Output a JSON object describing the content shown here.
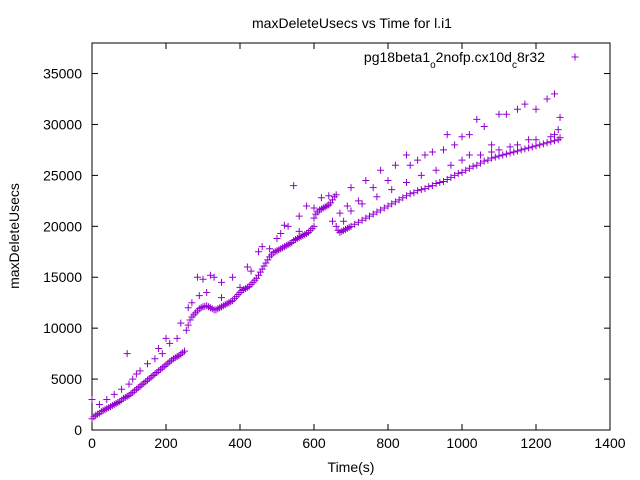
{
  "chart_data": {
    "type": "scatter",
    "title": "maxDeleteUsecs vs Time for l.i1",
    "xlabel": "Time(s)",
    "ylabel": "maxDeleteUsecs",
    "xlim": [
      0,
      1400
    ],
    "ylim": [
      0,
      38000
    ],
    "xticks": [
      0,
      200,
      400,
      600,
      800,
      1000,
      1200,
      1400
    ],
    "yticks": [
      0,
      5000,
      10000,
      15000,
      20000,
      25000,
      30000,
      35000
    ],
    "marker": "+",
    "grid": false,
    "legend_position": "top-right",
    "legend_label_parts": [
      {
        "text": "pg18beta1",
        "sub": false
      },
      {
        "text": "o",
        "sub": true
      },
      {
        "text": "2nofp.cx10d",
        "sub": false
      },
      {
        "text": "c",
        "sub": true
      },
      {
        "text": "8r32",
        "sub": false
      }
    ],
    "series": [
      {
        "color": "#9400D3",
        "points": [
          [
            0,
            1100
          ],
          [
            5,
            1300
          ],
          [
            10,
            1450
          ],
          [
            15,
            1550
          ],
          [
            20,
            1650
          ],
          [
            25,
            1800
          ],
          [
            30,
            1900
          ],
          [
            35,
            2000
          ],
          [
            40,
            2100
          ],
          [
            45,
            2200
          ],
          [
            50,
            2300
          ],
          [
            55,
            2400
          ],
          [
            60,
            2500
          ],
          [
            65,
            2600
          ],
          [
            70,
            2700
          ],
          [
            75,
            2800
          ],
          [
            80,
            2950
          ],
          [
            85,
            3100
          ],
          [
            90,
            3200
          ],
          [
            95,
            3300
          ],
          [
            100,
            3400
          ],
          [
            105,
            3550
          ],
          [
            110,
            3700
          ],
          [
            115,
            3850
          ],
          [
            120,
            4000
          ],
          [
            125,
            4150
          ],
          [
            130,
            4300
          ],
          [
            135,
            4450
          ],
          [
            140,
            4600
          ],
          [
            145,
            4750
          ],
          [
            150,
            4900
          ],
          [
            155,
            5050
          ],
          [
            160,
            5200
          ],
          [
            165,
            5350
          ],
          [
            170,
            5500
          ],
          [
            175,
            5650
          ],
          [
            180,
            5800
          ],
          [
            185,
            5950
          ],
          [
            190,
            6100
          ],
          [
            195,
            6250
          ],
          [
            200,
            6400
          ],
          [
            205,
            6550
          ],
          [
            210,
            6700
          ],
          [
            215,
            6850
          ],
          [
            220,
            7000
          ],
          [
            225,
            7100
          ],
          [
            230,
            7200
          ],
          [
            235,
            7300
          ],
          [
            240,
            7450
          ],
          [
            245,
            7600
          ],
          [
            250,
            7750
          ],
          [
            255,
            9800
          ],
          [
            260,
            10300
          ],
          [
            265,
            10800
          ],
          [
            270,
            11100
          ],
          [
            275,
            11300
          ],
          [
            280,
            11500
          ],
          [
            285,
            11700
          ],
          [
            290,
            11900
          ],
          [
            295,
            12000
          ],
          [
            300,
            12100
          ],
          [
            305,
            12150
          ],
          [
            310,
            12200
          ],
          [
            315,
            12100
          ],
          [
            320,
            12000
          ],
          [
            325,
            11900
          ],
          [
            330,
            11800
          ],
          [
            335,
            11800
          ],
          [
            340,
            11900
          ],
          [
            345,
            12000
          ],
          [
            350,
            12100
          ],
          [
            355,
            12200
          ],
          [
            360,
            12300
          ],
          [
            365,
            12400
          ],
          [
            370,
            12500
          ],
          [
            375,
            12600
          ],
          [
            380,
            12700
          ],
          [
            385,
            12900
          ],
          [
            390,
            13100
          ],
          [
            395,
            13300
          ],
          [
            400,
            13500
          ],
          [
            405,
            13700
          ],
          [
            410,
            13800
          ],
          [
            415,
            13900
          ],
          [
            420,
            14000
          ],
          [
            425,
            14100
          ],
          [
            430,
            14300
          ],
          [
            435,
            14500
          ],
          [
            440,
            14700
          ],
          [
            445,
            14900
          ],
          [
            450,
            15200
          ],
          [
            455,
            15500
          ],
          [
            460,
            15800
          ],
          [
            465,
            16100
          ],
          [
            470,
            16400
          ],
          [
            475,
            16700
          ],
          [
            480,
            17000
          ],
          [
            485,
            17200
          ],
          [
            490,
            17400
          ],
          [
            495,
            17500
          ],
          [
            500,
            17600
          ],
          [
            505,
            17700
          ],
          [
            510,
            17800
          ],
          [
            515,
            17900
          ],
          [
            520,
            18000
          ],
          [
            525,
            18100
          ],
          [
            530,
            18200
          ],
          [
            535,
            18300
          ],
          [
            540,
            18400
          ],
          [
            545,
            18600
          ],
          [
            550,
            18700
          ],
          [
            555,
            18800
          ],
          [
            560,
            18900
          ],
          [
            565,
            19000
          ],
          [
            570,
            19100
          ],
          [
            575,
            19200
          ],
          [
            580,
            19300
          ],
          [
            585,
            19400
          ],
          [
            590,
            19600
          ],
          [
            595,
            19800
          ],
          [
            600,
            20800
          ],
          [
            605,
            21200
          ],
          [
            610,
            21400
          ],
          [
            615,
            21600
          ],
          [
            620,
            21700
          ],
          [
            625,
            21800
          ],
          [
            630,
            21900
          ],
          [
            635,
            22000
          ],
          [
            640,
            22100
          ],
          [
            645,
            22300
          ],
          [
            650,
            22600
          ],
          [
            655,
            22900
          ],
          [
            660,
            23100
          ],
          [
            665,
            19600
          ],
          [
            670,
            19400
          ],
          [
            675,
            19500
          ],
          [
            680,
            19600
          ],
          [
            685,
            19700
          ],
          [
            690,
            19800
          ],
          [
            695,
            19900
          ],
          [
            700,
            20000
          ],
          [
            710,
            20200
          ],
          [
            720,
            20400
          ],
          [
            730,
            20600
          ],
          [
            740,
            20800
          ],
          [
            750,
            21000
          ],
          [
            760,
            21200
          ],
          [
            770,
            21400
          ],
          [
            780,
            21600
          ],
          [
            790,
            21800
          ],
          [
            800,
            22000
          ],
          [
            810,
            22200
          ],
          [
            820,
            22400
          ],
          [
            830,
            22600
          ],
          [
            840,
            22800
          ],
          [
            850,
            23000
          ],
          [
            860,
            23200
          ],
          [
            870,
            23300
          ],
          [
            880,
            23500
          ],
          [
            890,
            23600
          ],
          [
            900,
            23700
          ],
          [
            910,
            23900
          ],
          [
            920,
            24000
          ],
          [
            930,
            24200
          ],
          [
            940,
            24300
          ],
          [
            950,
            24400
          ],
          [
            960,
            24600
          ],
          [
            970,
            24800
          ],
          [
            980,
            25000
          ],
          [
            990,
            25200
          ],
          [
            1000,
            25300
          ],
          [
            1010,
            25500
          ],
          [
            1020,
            25700
          ],
          [
            1030,
            25900
          ],
          [
            1040,
            26000
          ],
          [
            1050,
            26200
          ],
          [
            1060,
            26400
          ],
          [
            1070,
            26500
          ],
          [
            1080,
            26700
          ],
          [
            1090,
            26800
          ],
          [
            1100,
            26900
          ],
          [
            1110,
            27000
          ],
          [
            1120,
            27100
          ],
          [
            1130,
            27200
          ],
          [
            1140,
            27300
          ],
          [
            1150,
            27400
          ],
          [
            1160,
            27500
          ],
          [
            1170,
            27600
          ],
          [
            1180,
            27700
          ],
          [
            1190,
            27800
          ],
          [
            1200,
            27900
          ],
          [
            1210,
            28000
          ],
          [
            1220,
            28100
          ],
          [
            1230,
            28200
          ],
          [
            1240,
            28300
          ],
          [
            1250,
            28400
          ],
          [
            1260,
            28500
          ],
          [
            1265,
            28700
          ],
          [
            0,
            3000
          ],
          [
            95,
            7500
          ],
          [
            180,
            8000
          ],
          [
            200,
            9000
          ],
          [
            240,
            10500
          ],
          [
            270,
            12500
          ],
          [
            300,
            14800
          ],
          [
            320,
            15200
          ],
          [
            330,
            15000
          ],
          [
            350,
            14500
          ],
          [
            380,
            15000
          ],
          [
            420,
            16000
          ],
          [
            450,
            17500
          ],
          [
            500,
            18800
          ],
          [
            530,
            20000
          ],
          [
            545,
            24000
          ],
          [
            560,
            19500
          ],
          [
            620,
            22800
          ],
          [
            640,
            23000
          ],
          [
            700,
            23800
          ],
          [
            740,
            24500
          ],
          [
            780,
            25500
          ],
          [
            820,
            26000
          ],
          [
            850,
            27000
          ],
          [
            900,
            27000
          ],
          [
            950,
            27500
          ],
          [
            980,
            28000
          ],
          [
            1000,
            28800
          ],
          [
            1020,
            29000
          ],
          [
            1060,
            29800
          ],
          [
            1080,
            28000
          ],
          [
            1100,
            31000
          ],
          [
            1120,
            31000
          ],
          [
            1150,
            31500
          ],
          [
            1170,
            32000
          ],
          [
            1200,
            31500
          ],
          [
            1230,
            32500
          ],
          [
            1250,
            33000
          ],
          [
            1265,
            30700
          ],
          [
            1040,
            30500
          ],
          [
            960,
            29000
          ],
          [
            920,
            27300
          ],
          [
            880,
            26500
          ],
          [
            860,
            26000
          ],
          [
            800,
            24500
          ],
          [
            760,
            23800
          ],
          [
            720,
            22500
          ],
          [
            690,
            22000
          ],
          [
            670,
            21300
          ],
          [
            650,
            20500
          ],
          [
            560,
            21000
          ],
          [
            580,
            22000
          ],
          [
            600,
            21800
          ],
          [
            600,
            20000
          ],
          [
            400,
            14000
          ],
          [
            430,
            15600
          ],
          [
            460,
            18000
          ],
          [
            480,
            17800
          ],
          [
            510,
            19300
          ],
          [
            520,
            20100
          ],
          [
            350,
            13000
          ],
          [
            310,
            13500
          ],
          [
            290,
            13200
          ],
          [
            285,
            15000
          ],
          [
            260,
            12000
          ],
          [
            230,
            9000
          ],
          [
            210,
            8500
          ],
          [
            190,
            7500
          ],
          [
            170,
            7000
          ],
          [
            150,
            6500
          ],
          [
            130,
            5800
          ],
          [
            120,
            5500
          ],
          [
            110,
            5000
          ],
          [
            100,
            4500
          ],
          [
            80,
            4000
          ],
          [
            60,
            3500
          ],
          [
            40,
            3000
          ],
          [
            20,
            2500
          ],
          [
            1000,
            26500
          ],
          [
            1050,
            27000
          ],
          [
            1100,
            27500
          ],
          [
            1150,
            28000
          ],
          [
            1200,
            28500
          ],
          [
            1250,
            29000
          ],
          [
            1260,
            29500
          ],
          [
            1240,
            28800
          ],
          [
            1180,
            28500
          ],
          [
            1130,
            27800
          ],
          [
            1080,
            27300
          ],
          [
            1020,
            27000
          ],
          [
            970,
            26000
          ],
          [
            930,
            25500
          ],
          [
            890,
            25000
          ],
          [
            850,
            24300
          ],
          [
            810,
            23600
          ],
          [
            770,
            22900
          ],
          [
            730,
            22200
          ],
          [
            700,
            21500
          ],
          [
            680,
            20500
          ],
          [
            660,
            20000
          ]
        ]
      }
    ]
  }
}
